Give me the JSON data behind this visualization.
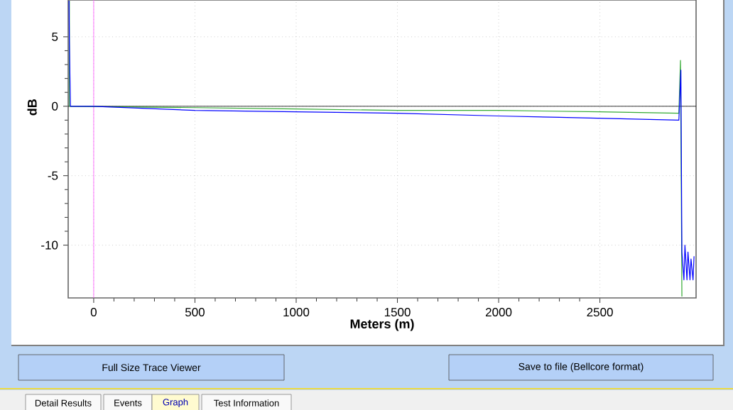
{
  "chart_data": {
    "type": "line",
    "xlabel": "Meters (m)",
    "ylabel": "dB",
    "xlim": [
      -126,
      2975
    ],
    "ylim": [
      -13.8,
      7.65
    ],
    "xticks": [
      0,
      500,
      1000,
      1500,
      2000,
      2500
    ],
    "yticks": [
      -10,
      -5,
      0,
      5
    ],
    "grid": true,
    "marker": "none",
    "line_style": "solid",
    "series": [
      {
        "color": "#33aa33",
        "x": [
          -120,
          -120,
          -115,
          500,
          1000,
          1500,
          2000,
          2500,
          2890,
          2898,
          2905
        ],
        "values": [
          7.6,
          0,
          0,
          -0.1,
          -0.2,
          -0.3,
          -0.3,
          -0.4,
          -0.5,
          3.3,
          -13.7
        ]
      },
      {
        "color": "#0000ff",
        "x": [
          -122,
          -120,
          -115,
          0,
          500,
          1000,
          1500,
          2000,
          2300,
          2600,
          2890,
          2900,
          2905,
          2915,
          2920,
          2930,
          2935,
          2945,
          2950,
          2960,
          2965
        ],
        "values": [
          7.6,
          4.7,
          0,
          0,
          -0.3,
          -0.4,
          -0.5,
          -0.7,
          -0.8,
          -0.9,
          -1.0,
          2.6,
          -10.5,
          -12.5,
          -10,
          -12.5,
          -10.5,
          -12.5,
          -11,
          -12.5,
          -10.8
        ]
      }
    ],
    "ref_lines": [
      {
        "axis": "y",
        "value": 0,
        "color": "#000000"
      },
      {
        "axis": "x",
        "value": 0,
        "color": "#ff55ff"
      }
    ],
    "annotations": [
      "Full Size Trace Viewer",
      "Save to file (Bellcore format)",
      "Detail Results",
      "Events",
      "Graph",
      "Test Information"
    ]
  }
}
